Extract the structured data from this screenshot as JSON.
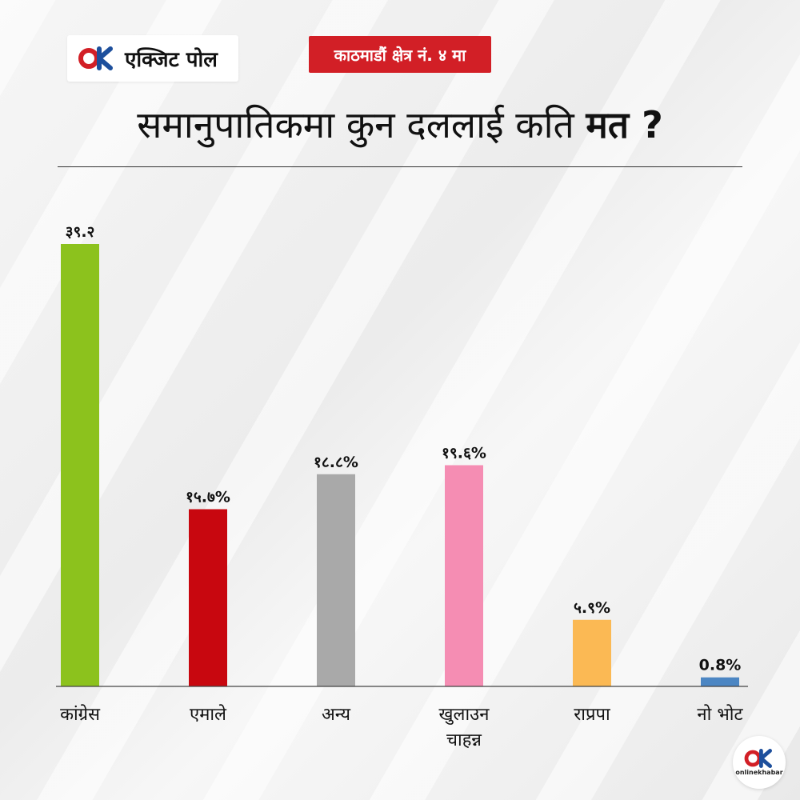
{
  "header": {
    "brand_label": "एक्जिट पोल",
    "tag": "काठमाडौं क्षेत्र नं. ४ मा",
    "title_main": "समानुपातिकमा कुन दललाई कति",
    "title_bold": "मत ?"
  },
  "footer": {
    "logo_text": "onlinekhabar"
  },
  "colors": {
    "tag_bg": "#d21f26",
    "logo_red": "#d21f26",
    "logo_blue": "#1d4f9c"
  },
  "chart_data": {
    "type": "bar",
    "title": "समानुपातिकमा कुन दललाई कति मत ?",
    "categories": [
      "कांग्रेस",
      "एमाले",
      "अन्य",
      "खुलाउन चाहन्न",
      "राप्रपा",
      "नो भोट"
    ],
    "category_lines": [
      [
        "कांग्रेस"
      ],
      [
        "एमाले"
      ],
      [
        "अन्य"
      ],
      [
        "खुलाउन",
        "चाहन्न"
      ],
      [
        "राप्रपा"
      ],
      [
        "नो  भोट"
      ]
    ],
    "values": [
      39.2,
      15.7,
      18.8,
      19.6,
      5.9,
      0.8
    ],
    "value_labels": [
      "३९.२",
      "१५.७%",
      "१८.८%",
      "१९.६%",
      "५.९%",
      "0.8%"
    ],
    "colors": [
      "#8cc21d",
      "#c8070f",
      "#a9a9a9",
      "#f58db3",
      "#fbb954",
      "#4c86c3"
    ],
    "ylim": [
      0,
      40
    ],
    "grid": false,
    "legend": "none"
  }
}
